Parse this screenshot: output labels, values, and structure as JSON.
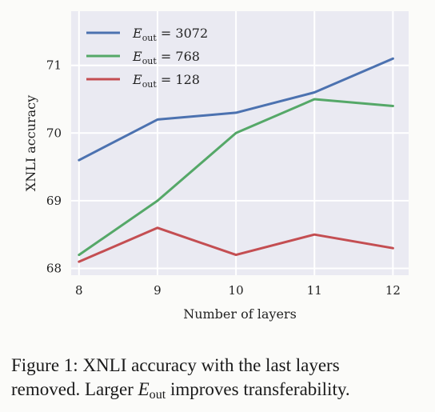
{
  "chart_data": {
    "type": "line",
    "x": [
      8,
      9,
      10,
      11,
      12
    ],
    "xlabel": "Number of layers",
    "ylabel": "XNLI accuracy",
    "xlim": [
      7.9,
      12.2
    ],
    "ylim": [
      67.9,
      71.8
    ],
    "xticks": [
      "8",
      "9",
      "10",
      "11",
      "12"
    ],
    "yticks": [
      "68",
      "69",
      "70",
      "71"
    ],
    "grid": true,
    "legend_position": "top-left",
    "series": [
      {
        "name": "E_out = 3072",
        "legend_main": "E",
        "legend_sub": "out",
        "legend_rest": " = 3072",
        "color": "#4c72b0",
        "values": [
          69.6,
          70.2,
          70.3,
          70.6,
          71.1
        ]
      },
      {
        "name": "E_out = 768",
        "legend_main": "E",
        "legend_sub": "out",
        "legend_rest": " = 768",
        "color": "#55a868",
        "values": [
          68.2,
          69.0,
          70.0,
          70.5,
          70.4
        ]
      },
      {
        "name": "E_out = 128",
        "legend_main": "E",
        "legend_sub": "out",
        "legend_rest": " = 128",
        "color": "#c44e52",
        "values": [
          68.1,
          68.6,
          68.2,
          68.5,
          68.3
        ]
      }
    ]
  },
  "caption": {
    "line1": "Figure 1:  XNLI accuracy with the last layers",
    "line2_pre": "removed. Larger ",
    "line2_math": "E",
    "line2_sub": "out",
    "line2_post": " improves transferability."
  }
}
